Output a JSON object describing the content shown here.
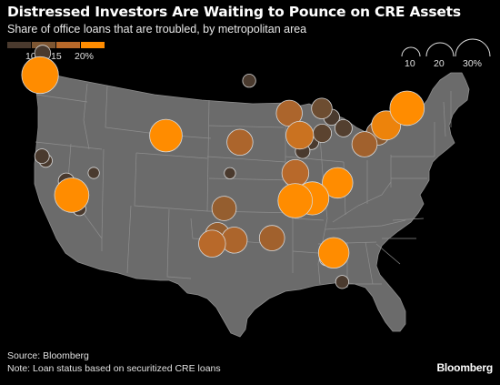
{
  "title": "Distressed Investors Are Waiting to Pounce on CRE Assets",
  "subtitle": "Share of office loans that are troubled, by metropolitan area",
  "color_legend": {
    "labels": [
      "10",
      "15",
      "20%"
    ],
    "colors": [
      "#4a3a2e",
      "#7e5632",
      "#b8692a",
      "#ff8c00"
    ]
  },
  "size_legend": {
    "labels": [
      "10",
      "20",
      "30%"
    ]
  },
  "colors": {
    "background": "#000000",
    "land": "#6b6b6b",
    "borders": "#8e8e8e",
    "accent": "#ff8c00"
  },
  "footer": {
    "source": "Source: Bloomberg",
    "note": "Note: Loan status based on securitized CRE loans"
  },
  "brand": "Bloomberg",
  "chart_data": {
    "type": "bubble-map",
    "title": "Distressed Investors Are Waiting to Pounce on CRE Assets",
    "subtitle": "Share of office loans that are troubled, by metropolitan area",
    "value_unit": "%",
    "color_scale": [
      10,
      15,
      20
    ],
    "size_scale": [
      10,
      20,
      30
    ],
    "points": [
      {
        "lon": -122.68,
        "lat": 45.52,
        "value": 32
      },
      {
        "lon": -122.33,
        "lat": 47.61,
        "value": 6
      },
      {
        "lon": -122.42,
        "lat": 37.77,
        "value": 5
      },
      {
        "lon": -121.89,
        "lat": 37.34,
        "value": 4
      },
      {
        "lon": -119.0,
        "lat": 35.4,
        "value": 6
      },
      {
        "lon": -118.24,
        "lat": 34.05,
        "value": 28
      },
      {
        "lon": -117.16,
        "lat": 32.72,
        "value": 4
      },
      {
        "lon": -115.14,
        "lat": 36.17,
        "value": 3
      },
      {
        "lon": -104.99,
        "lat": 39.74,
        "value": 25
      },
      {
        "lon": -93.27,
        "lat": 44.98,
        "value": 4
      },
      {
        "lon": -96.8,
        "lat": 32.78,
        "value": 14
      },
      {
        "lon": -97.74,
        "lat": 30.27,
        "value": 14
      },
      {
        "lon": -98.49,
        "lat": 29.42,
        "value": 17
      },
      {
        "lon": -95.37,
        "lat": 29.76,
        "value": 16
      },
      {
        "lon": -90.07,
        "lat": 29.95,
        "value": 15
      },
      {
        "lon": -94.58,
        "lat": 39.1,
        "value": 16
      },
      {
        "lon": -95.99,
        "lat": 36.15,
        "value": 3
      },
      {
        "lon": -87.63,
        "lat": 41.88,
        "value": 16
      },
      {
        "lon": -86.16,
        "lat": 39.77,
        "value": 18
      },
      {
        "lon": -83.05,
        "lat": 42.33,
        "value": 10
      },
      {
        "lon": -84.51,
        "lat": 39.1,
        "value": 5
      },
      {
        "lon": -82.99,
        "lat": 39.96,
        "value": 8
      },
      {
        "lon": -81.69,
        "lat": 41.5,
        "value": 6
      },
      {
        "lon": -80.0,
        "lat": 40.44,
        "value": 7
      },
      {
        "lon": -85.76,
        "lat": 38.25,
        "value": 5
      },
      {
        "lon": -86.78,
        "lat": 36.16,
        "value": 17
      },
      {
        "lon": -84.39,
        "lat": 33.75,
        "value": 26
      },
      {
        "lon": -80.84,
        "lat": 35.23,
        "value": 22
      },
      {
        "lon": -86.8,
        "lat": 33.52,
        "value": 28
      },
      {
        "lon": -81.38,
        "lat": 28.54,
        "value": 22
      },
      {
        "lon": -82.46,
        "lat": 27.95,
        "value": 4
      },
      {
        "lon": -80.19,
        "lat": 25.76,
        "value": 4
      },
      {
        "lon": -74.01,
        "lat": 40.71,
        "value": 20
      },
      {
        "lon": -75.17,
        "lat": 39.95,
        "value": 13
      },
      {
        "lon": -76.61,
        "lat": 39.29,
        "value": 7
      },
      {
        "lon": -77.04,
        "lat": 38.91,
        "value": 15
      },
      {
        "lon": -71.06,
        "lat": 42.36,
        "value": 28
      }
    ]
  }
}
